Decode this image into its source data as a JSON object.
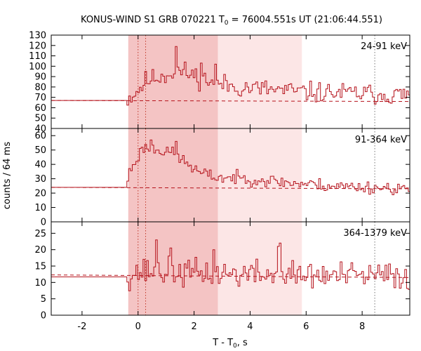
{
  "chart_data": {
    "type": "line",
    "title": "KONUS-WIND S1 GRB 070221 T",
    "title_sub": "0",
    "title_rest": " = 76004.551s UT (21:06:44.551)",
    "xlabel": "T - T",
    "xlabel_sub": "0",
    "xlabel_rest": ", s",
    "ylabel": "counts / 64 ms",
    "xlim": [
      -3.1,
      9.7
    ],
    "x_ticks": [
      -2,
      0,
      2,
      4,
      6,
      8
    ],
    "x_tick_labels": [
      "-2",
      "0",
      "2",
      "4",
      "6",
      "8"
    ],
    "bin_width": 0.064,
    "shading": [
      {
        "x0": -0.35,
        "x1": 2.85,
        "color": "#f4c4c4"
      },
      {
        "x0": 2.85,
        "x1": 5.85,
        "color": "#fce6e6"
      }
    ],
    "vlines": [
      0.0,
      0.27,
      8.45
    ],
    "line_color": "#b5121b",
    "panels": [
      {
        "label": "24-91 keV",
        "ylim": [
          40,
          130
        ],
        "y_ticks": [
          40,
          50,
          60,
          70,
          80,
          90,
          100,
          110,
          120,
          130
        ],
        "y_tick_labels": [
          "40",
          "50",
          "60",
          "70",
          "80",
          "90",
          "100",
          "110",
          "120",
          "130"
        ],
        "background": 67,
        "background_end": 66,
        "pre_level": 67,
        "profile": [
          [
            -0.4,
            68
          ],
          [
            -0.1,
            74
          ],
          [
            0.3,
            86
          ],
          [
            1.0,
            92
          ],
          [
            1.4,
            96
          ],
          [
            2.0,
            91
          ],
          [
            2.8,
            84
          ],
          [
            3.5,
            80
          ],
          [
            5.0,
            77
          ],
          [
            6.0,
            75
          ],
          [
            7.5,
            74
          ],
          [
            9.7,
            72
          ]
        ],
        "noise": 7.5,
        "spikes": [
          [
            1.33,
            119
          ],
          [
            1.65,
            104
          ],
          [
            2.27,
            103
          ],
          [
            2.75,
            102
          ]
        ],
        "seed": 11
      },
      {
        "label": "91-364 keV",
        "ylim": [
          0,
          65
        ],
        "y_ticks": [
          0,
          10,
          20,
          30,
          40,
          50,
          60
        ],
        "y_tick_labels": [
          "0",
          "10",
          "20",
          "30",
          "40",
          "50",
          "60"
        ],
        "background": 24,
        "background_end": 23,
        "pre_level": 24,
        "profile": [
          [
            -0.4,
            24
          ],
          [
            -0.35,
            33
          ],
          [
            -0.1,
            42
          ],
          [
            0.2,
            52
          ],
          [
            0.8,
            50
          ],
          [
            1.3,
            47
          ],
          [
            1.8,
            40
          ],
          [
            2.2,
            34
          ],
          [
            2.8,
            31
          ],
          [
            4.0,
            30
          ],
          [
            5.5,
            27
          ],
          [
            7.0,
            25
          ],
          [
            9.7,
            23
          ]
        ],
        "noise": 3.4,
        "spikes": [
          [
            0.45,
            57
          ],
          [
            1.33,
            56
          ],
          [
            1.02,
            52
          ]
        ],
        "seed": 23
      },
      {
        "label": "364-1379 keV",
        "ylim": [
          0,
          28.5
        ],
        "y_ticks": [
          0,
          5,
          10,
          15,
          20,
          25
        ],
        "y_tick_labels": [
          "0",
          "5",
          "10",
          "15",
          "20",
          "25"
        ],
        "background": 12.3,
        "background_end": 11.5,
        "pre_level": 11.7,
        "profile": [
          [
            -0.4,
            12
          ],
          [
            -0.1,
            13
          ],
          [
            0.5,
            13.5
          ],
          [
            1.5,
            13
          ],
          [
            3.0,
            12.7
          ],
          [
            5.0,
            12.3
          ],
          [
            7.0,
            12.0
          ],
          [
            9.7,
            12.0
          ]
        ],
        "noise": 3.3,
        "spikes": [
          [
            0.65,
            23
          ],
          [
            1.2,
            20.5
          ],
          [
            4.98,
            21
          ],
          [
            5.05,
            22
          ],
          [
            2.7,
            20
          ]
        ],
        "seed": 37
      }
    ]
  }
}
